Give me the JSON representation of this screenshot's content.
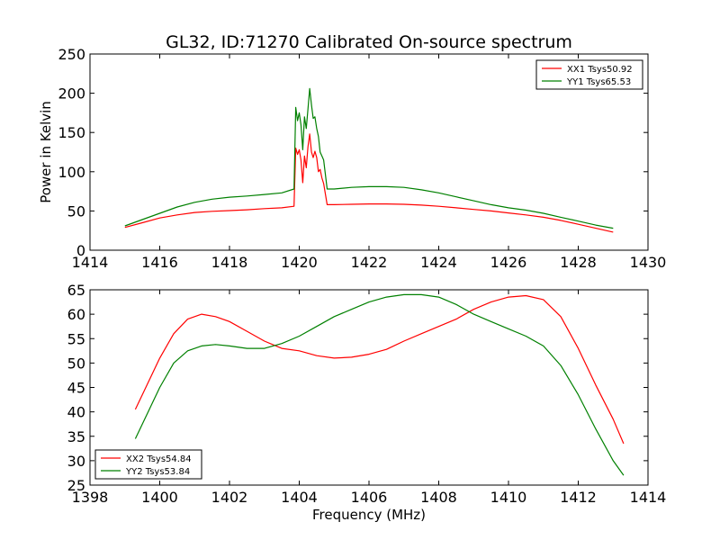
{
  "chart_data": [
    {
      "type": "line",
      "title": "GL32, ID:71270 Calibrated On-source spectrum",
      "xlabel": "",
      "ylabel": "Power in Kelvin",
      "xlim": [
        1414,
        1430
      ],
      "ylim": [
        0,
        250
      ],
      "xticks": [
        1414,
        1416,
        1418,
        1420,
        1422,
        1424,
        1426,
        1428,
        1430
      ],
      "yticks": [
        0,
        50,
        100,
        150,
        200,
        250
      ],
      "legend_position": "top-right",
      "grid": false,
      "series": [
        {
          "name": "XX1 Tsys50.92",
          "color": "#ff0000",
          "x": [
            1415.0,
            1415.5,
            1416.0,
            1416.5,
            1417.0,
            1417.5,
            1418.0,
            1418.5,
            1419.0,
            1419.5,
            1419.85,
            1419.9,
            1419.95,
            1420.0,
            1420.05,
            1420.1,
            1420.15,
            1420.2,
            1420.25,
            1420.3,
            1420.35,
            1420.4,
            1420.45,
            1420.5,
            1420.55,
            1420.6,
            1420.65,
            1420.7,
            1420.8,
            1421.0,
            1421.5,
            1422.0,
            1422.5,
            1423.0,
            1423.5,
            1424.0,
            1424.5,
            1425.0,
            1425.5,
            1426.0,
            1426.5,
            1427.0,
            1427.5,
            1428.0,
            1428.5,
            1429.0
          ],
          "y": [
            29,
            35,
            41,
            45,
            48,
            49.5,
            50.5,
            51.5,
            53,
            54,
            56,
            130,
            122,
            128,
            115,
            86,
            120,
            105,
            132,
            148,
            125,
            118,
            126,
            118,
            100,
            103,
            92,
            85,
            58,
            58,
            58.5,
            59,
            59,
            58.5,
            57.5,
            56,
            54,
            52,
            50,
            47.5,
            45,
            42,
            38,
            33,
            28,
            23
          ]
        },
        {
          "name": "YY1 Tsys65.53",
          "color": "#008000",
          "x": [
            1415.0,
            1415.5,
            1416.0,
            1416.5,
            1417.0,
            1417.5,
            1418.0,
            1418.5,
            1419.0,
            1419.5,
            1419.85,
            1419.9,
            1419.95,
            1420.0,
            1420.05,
            1420.1,
            1420.15,
            1420.2,
            1420.25,
            1420.3,
            1420.35,
            1420.4,
            1420.45,
            1420.5,
            1420.55,
            1420.6,
            1420.65,
            1420.7,
            1420.8,
            1421.0,
            1421.5,
            1422.0,
            1422.5,
            1423.0,
            1423.5,
            1424.0,
            1424.5,
            1425.0,
            1425.5,
            1426.0,
            1426.5,
            1427.0,
            1427.5,
            1428.0,
            1428.5,
            1429.0
          ],
          "y": [
            31,
            39,
            47,
            55,
            61,
            65,
            67.5,
            69,
            71,
            73,
            78,
            182,
            165,
            175,
            160,
            128,
            170,
            155,
            180,
            206,
            185,
            168,
            170,
            155,
            145,
            125,
            120,
            115,
            78,
            78,
            80,
            81,
            81,
            80,
            77,
            73,
            68,
            63,
            58,
            54,
            51,
            47,
            42,
            37,
            32,
            28
          ]
        }
      ]
    },
    {
      "type": "line",
      "title": "",
      "xlabel": "Frequency (MHz)",
      "ylabel": "",
      "xlim": [
        1398,
        1414
      ],
      "ylim": [
        25,
        65
      ],
      "xticks": [
        1398,
        1400,
        1402,
        1404,
        1406,
        1408,
        1410,
        1412,
        1414
      ],
      "yticks": [
        25,
        30,
        35,
        40,
        45,
        50,
        55,
        60,
        65
      ],
      "legend_position": "bottom-left",
      "grid": false,
      "series": [
        {
          "name": "XX2 Tsys54.84",
          "color": "#ff0000",
          "x": [
            1399.3,
            1399.6,
            1400.0,
            1400.4,
            1400.8,
            1401.2,
            1401.6,
            1402.0,
            1402.5,
            1403.0,
            1403.5,
            1404.0,
            1404.5,
            1405.0,
            1405.5,
            1406.0,
            1406.5,
            1407.0,
            1407.5,
            1408.0,
            1408.5,
            1409.0,
            1409.5,
            1410.0,
            1410.5,
            1411.0,
            1411.5,
            1412.0,
            1412.5,
            1413.0,
            1413.3
          ],
          "y": [
            40.5,
            45,
            51,
            56,
            59,
            60,
            59.5,
            58.5,
            56.5,
            54.5,
            53,
            52.5,
            51.5,
            51,
            51.2,
            51.8,
            52.8,
            54.5,
            56,
            57.5,
            59,
            61,
            62.5,
            63.5,
            63.8,
            63,
            59.5,
            53,
            45.5,
            38.5,
            33.5
          ]
        },
        {
          "name": "YY2 Tsys53.84",
          "color": "#008000",
          "x": [
            1399.3,
            1399.6,
            1400.0,
            1400.4,
            1400.8,
            1401.2,
            1401.6,
            1402.0,
            1402.5,
            1403.0,
            1403.5,
            1404.0,
            1404.5,
            1405.0,
            1405.5,
            1406.0,
            1406.5,
            1407.0,
            1407.5,
            1408.0,
            1408.5,
            1409.0,
            1409.5,
            1410.0,
            1410.5,
            1411.0,
            1411.5,
            1412.0,
            1412.5,
            1413.0,
            1413.3
          ],
          "y": [
            34.5,
            39,
            45,
            50,
            52.5,
            53.5,
            53.8,
            53.5,
            53,
            53,
            54,
            55.5,
            57.5,
            59.5,
            61,
            62.5,
            63.5,
            64,
            64,
            63.5,
            62,
            60,
            58.5,
            57,
            55.5,
            53.5,
            49.5,
            43.5,
            36.5,
            30,
            27
          ]
        }
      ]
    }
  ]
}
